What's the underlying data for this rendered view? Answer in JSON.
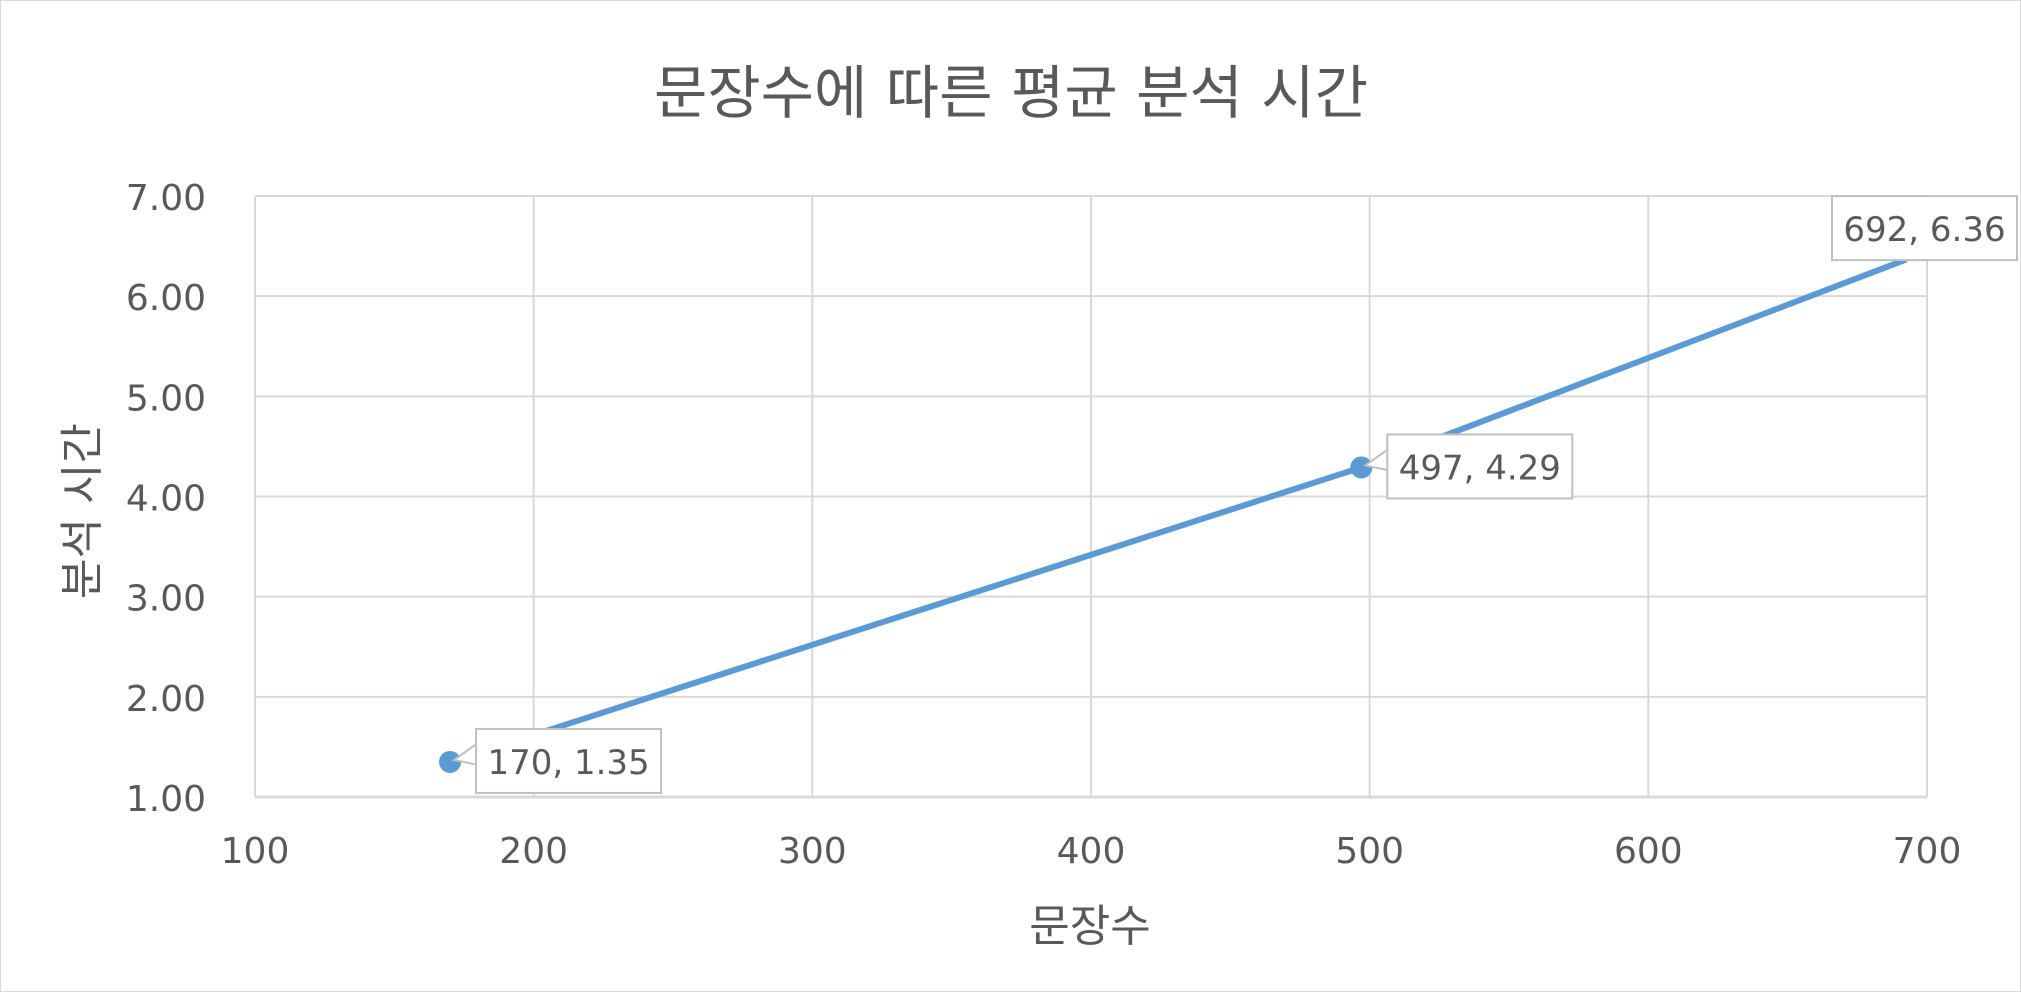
{
  "chart_data": {
    "type": "scatter",
    "title": "문장수에 따른 평균 분석 시간",
    "xlabel": "문장수",
    "ylabel": "분석 시간",
    "xlim": [
      100,
      700
    ],
    "ylim": [
      1.0,
      7.0
    ],
    "x_ticks": [
      "100",
      "200",
      "300",
      "400",
      "500",
      "600",
      "700"
    ],
    "y_ticks": [
      "1.00",
      "2.00",
      "3.00",
      "4.00",
      "5.00",
      "6.00",
      "7.00"
    ],
    "grid": true,
    "legend": "none",
    "series": [
      {
        "color": "#5b9bd5",
        "line": true,
        "markers": true,
        "points": [
          {
            "x": 170,
            "y": 1.35,
            "label": "170, 1.35"
          },
          {
            "x": 497,
            "y": 4.29,
            "label": "497, 4.29"
          },
          {
            "x": 692,
            "y": 6.36,
            "label": "692, 6.36"
          }
        ]
      }
    ],
    "colors": {
      "series": "#5b9bd5",
      "grid": "#d9d9d9",
      "text": "#595959",
      "callout_border": "#bfbfbf"
    }
  }
}
